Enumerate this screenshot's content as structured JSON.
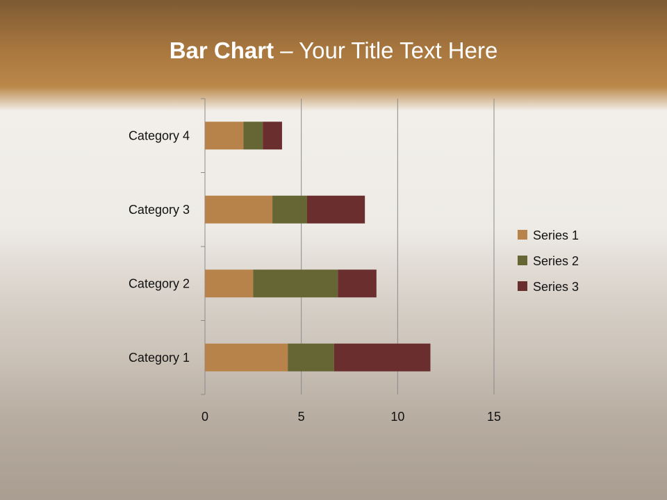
{
  "title": {
    "bold": "Bar Chart",
    "rest": " – Your Title Text Here"
  },
  "chart_data": {
    "type": "bar",
    "orientation": "horizontal",
    "stacked": true,
    "categories": [
      "Category 1",
      "Category 2",
      "Category 3",
      "Category 4"
    ],
    "series": [
      {
        "name": "Series 1",
        "values": [
          4.3,
          2.5,
          3.5,
          2
        ],
        "color": "#b8834a"
      },
      {
        "name": "Series 2",
        "values": [
          2.4,
          4.4,
          1.8,
          1
        ],
        "color": "#656633"
      },
      {
        "name": "Series 3",
        "values": [
          5,
          2,
          3,
          1
        ],
        "color": "#6b2e2e"
      }
    ],
    "xlim": [
      0,
      15
    ],
    "xticks": [
      "0",
      "5",
      "10",
      "15"
    ],
    "grid": true,
    "legend": "right"
  }
}
